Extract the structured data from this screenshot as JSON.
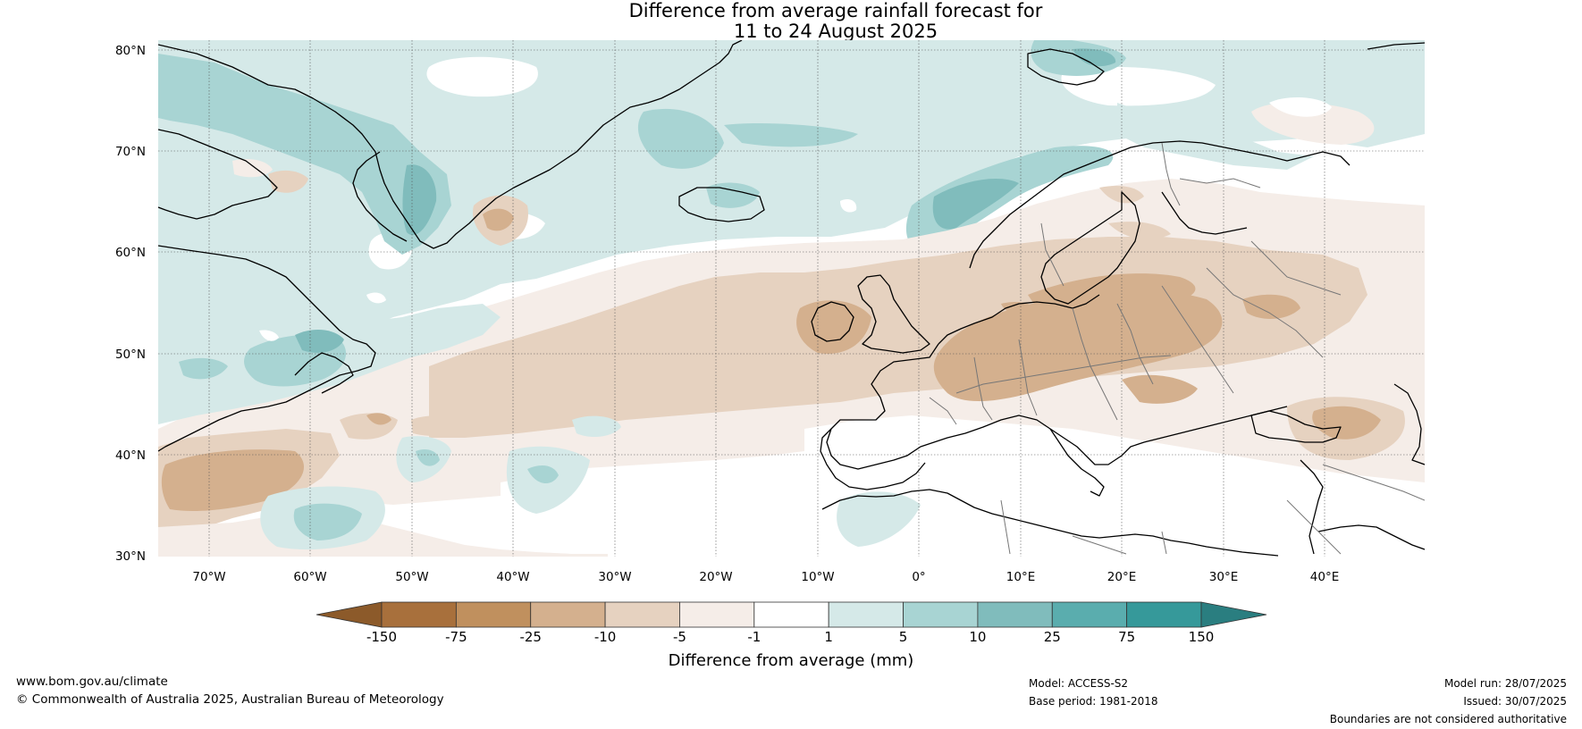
{
  "title": {
    "line1": "Difference from average rainfall forecast for",
    "line2": "11 to 24 August 2025"
  },
  "map": {
    "projection": "plate carree",
    "lat_labels": [
      "80°N",
      "70°N",
      "60°N",
      "50°N",
      "40°N",
      "30°N"
    ],
    "lon_labels": [
      "70°W",
      "60°W",
      "50°W",
      "40°W",
      "30°W",
      "20°W",
      "10°W",
      "0°",
      "10°E",
      "20°E",
      "30°E",
      "40°E"
    ],
    "gridlines": "dotted"
  },
  "colorbar": {
    "ticks": [
      "-150",
      "-75",
      "-25",
      "-10",
      "-5",
      "-1",
      "1",
      "5",
      "10",
      "25",
      "75",
      "150"
    ],
    "colors": [
      "#8c5a2a",
      "#a8703c",
      "#c0905e",
      "#d4b08e",
      "#e6d2c0",
      "#f5ede8",
      "#ffffff",
      "#d5e9e8",
      "#a8d4d3",
      "#80bcbc",
      "#5aadae",
      "#36999a",
      "#2a7e80"
    ],
    "label": "Difference from average (mm)",
    "extend": "both"
  },
  "footer": {
    "url": "www.bom.gov.au/climate",
    "copyright": "© Commonwealth of Australia 2025, Australian Bureau of Meteorology",
    "model": "Model: ACCESS-S2",
    "base_period": "Base period: 1981-2018",
    "model_run": "Model run: 28/07/2025",
    "issued": "Issued: 30/07/2025",
    "boundaries": "Boundaries are not considered authoritative"
  }
}
